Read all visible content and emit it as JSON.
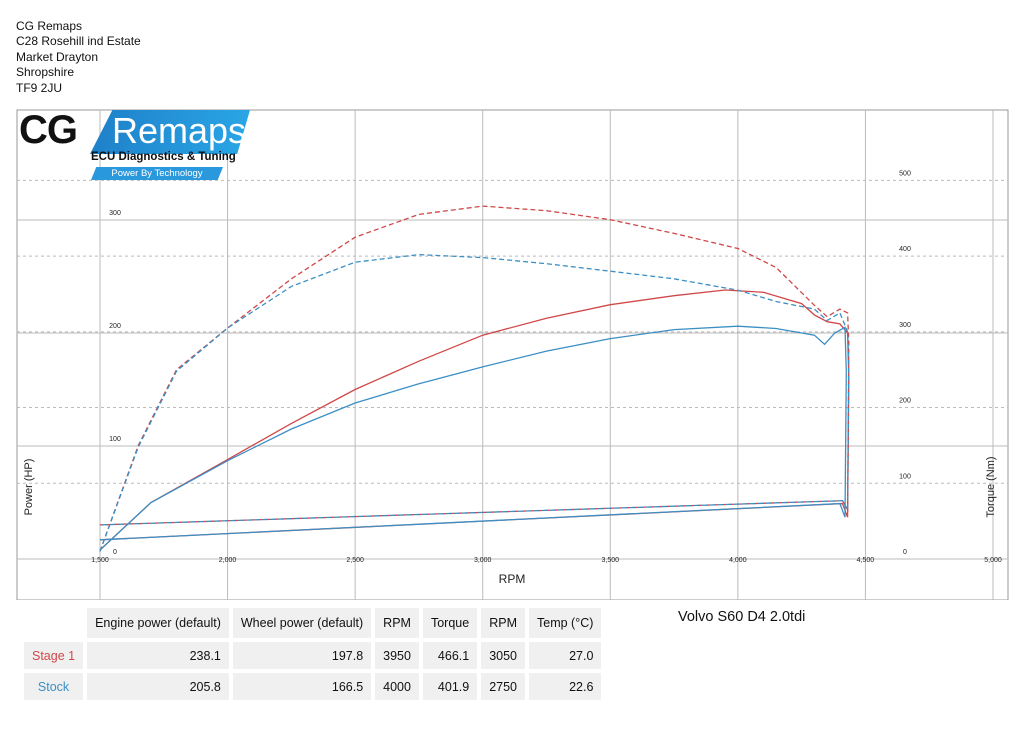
{
  "header": {
    "address_lines": [
      "CG Remaps",
      "C28 Rosehill ind Estate",
      "Market Drayton",
      "Shropshire",
      "TF9 2JU"
    ]
  },
  "logo": {
    "prefix": "CG",
    "brand": "Remaps",
    "tagline": "ECU Diagnostics & Tuning",
    "slogan": "Power By Technology",
    "colors": {
      "banner": "#2196d8"
    }
  },
  "vehicle": "Volvo S60 D4 2.0tdi",
  "table": {
    "headers": [
      "",
      "Engine power (default)",
      "Wheel power (default)",
      "RPM",
      "Torque",
      "RPM",
      "Temp (°C)"
    ],
    "rows": [
      {
        "label": "Stage 1",
        "cells": [
          "238.1",
          "197.8",
          "3950",
          "466.1",
          "3050",
          "27.0"
        ]
      },
      {
        "label": "Stock",
        "cells": [
          "205.8",
          "166.5",
          "4000",
          "401.9",
          "2750",
          "22.6"
        ]
      }
    ]
  },
  "chart_data": {
    "type": "line",
    "xlabel": "RPM",
    "ylabel": "Power (HP)",
    "y2label": "Torque (Nm)",
    "xlim": [
      1500,
      5000
    ],
    "ylim": [
      0,
      392
    ],
    "y2lim": [
      0,
      585
    ],
    "x_ticks": [
      "1,500",
      "2,000",
      "2,500",
      "3,000",
      "3,500",
      "4,000",
      "4,500",
      "5,000"
    ],
    "x_tick_values": [
      1500,
      2000,
      2500,
      3000,
      3500,
      4000,
      4500,
      5000
    ],
    "y_ticks": [
      "0",
      "100",
      "200",
      "300"
    ],
    "y_tick_values": [
      0,
      100,
      200,
      300
    ],
    "y2_ticks": [
      "0",
      "100",
      "200",
      "300",
      "400",
      "500"
    ],
    "y2_tick_values": [
      0,
      100,
      200,
      300,
      400,
      500
    ],
    "grid": true,
    "series": [
      {
        "name": "Stage 1",
        "metric": "power",
        "color": "#d04848",
        "dash": false,
        "x": [
          1500,
          1700,
          2000,
          2250,
          2500,
          2750,
          3000,
          3250,
          3500,
          3750,
          3950,
          4100,
          4250,
          4300,
          4350,
          4400,
          4430
        ],
        "y": [
          8,
          50,
          88,
          120,
          150,
          175,
          198,
          213,
          225,
          233,
          238,
          236,
          226,
          216,
          210,
          208,
          200
        ]
      },
      {
        "name": "Stock",
        "metric": "power",
        "color": "#3b8fc4",
        "dash": false,
        "x": [
          1500,
          1700,
          2000,
          2250,
          2500,
          2750,
          3000,
          3250,
          3500,
          3750,
          4000,
          4150,
          4300,
          4340,
          4380,
          4420
        ],
        "y": [
          8,
          50,
          87,
          115,
          138,
          155,
          170,
          184,
          195,
          203,
          206,
          204,
          198,
          190,
          200,
          205
        ]
      },
      {
        "name": "Stage 1",
        "metric": "torque",
        "color": "#d04848",
        "dash": true,
        "x": [
          1500,
          1650,
          1800,
          2000,
          2250,
          2500,
          2750,
          3000,
          3250,
          3500,
          3750,
          4000,
          4150,
          4300,
          4350,
          4400,
          4430
        ],
        "y": [
          10,
          150,
          250,
          305,
          370,
          425,
          455,
          466,
          460,
          448,
          430,
          410,
          385,
          335,
          320,
          330,
          325
        ]
      },
      {
        "name": "Stock",
        "metric": "torque",
        "color": "#3b8fc4",
        "dash": true,
        "x": [
          1500,
          1650,
          1800,
          2000,
          2250,
          2500,
          2750,
          3000,
          3250,
          3500,
          3750,
          4000,
          4150,
          4300,
          4350,
          4400,
          4430
        ],
        "y": [
          10,
          148,
          248,
          305,
          360,
          392,
          402,
          398,
          390,
          380,
          370,
          355,
          340,
          330,
          315,
          325,
          300
        ]
      }
    ]
  }
}
